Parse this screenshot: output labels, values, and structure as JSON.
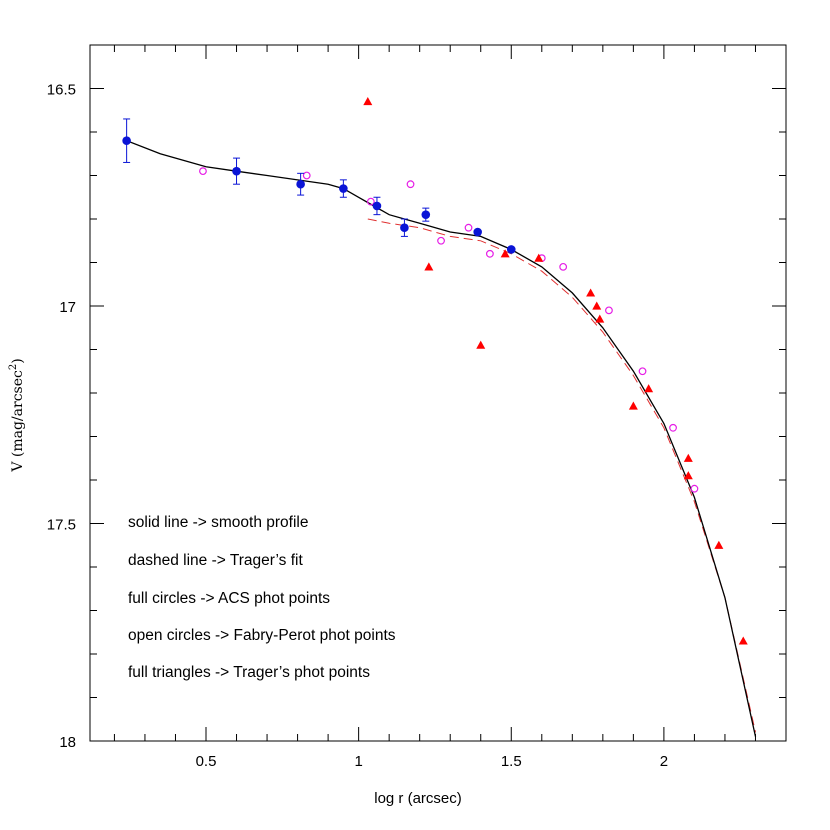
{
  "chart_data": {
    "type": "scatter",
    "xlabel": "log r (arcsec)",
    "ylabel_main": "V  (mag/arcsec",
    "ylabel_sup": "2",
    "ylabel_close": ")",
    "xlim": [
      0.12,
      2.4
    ],
    "ylim": [
      18,
      16.4
    ],
    "y_inverted": true,
    "x_major_ticks": [
      0.5,
      1,
      1.5,
      2
    ],
    "x_tick_labels": [
      "0.5",
      "1",
      "1.5",
      "2"
    ],
    "x_minor_step": 0.1,
    "y_major_ticks": [
      16.5,
      17,
      17.5,
      18
    ],
    "y_tick_labels": [
      "16.5",
      "17",
      "17.5",
      "18"
    ],
    "y_minor_step": 0.1,
    "annotations": [
      "solid line -> smooth profile",
      "dashed line -> Trager’s fit",
      "full circles -> ACS phot points",
      "open circles -> Fabry-Perot phot points",
      "full triangles -> Trager’s phot points"
    ],
    "colors": {
      "acs": "#0a14d6",
      "fabry_perot": "#e61ee6",
      "trager": "#ff0000",
      "smooth": "#000000",
      "trager_fit": "#e03030"
    },
    "series": [
      {
        "key": "smooth_profile",
        "style": "solid-line",
        "x": [
          0.24,
          0.35,
          0.5,
          0.6,
          0.7,
          0.8,
          0.9,
          0.95,
          1.0,
          1.05,
          1.1,
          1.15,
          1.2,
          1.3,
          1.4,
          1.5,
          1.6,
          1.7,
          1.8,
          1.9,
          2.0,
          2.1,
          2.2,
          2.3
        ],
        "y": [
          16.62,
          16.65,
          16.68,
          16.69,
          16.7,
          16.71,
          16.72,
          16.73,
          16.75,
          16.77,
          16.79,
          16.8,
          16.81,
          16.83,
          16.84,
          16.87,
          16.91,
          16.97,
          17.05,
          17.15,
          17.27,
          17.44,
          17.67,
          17.99
        ]
      },
      {
        "key": "trager_fit",
        "style": "dashed-line",
        "x": [
          1.03,
          1.1,
          1.2,
          1.3,
          1.4,
          1.5,
          1.6,
          1.7,
          1.8,
          1.9,
          2.0,
          2.1,
          2.2,
          2.3
        ],
        "y": [
          16.8,
          16.81,
          16.82,
          16.84,
          16.85,
          16.88,
          16.92,
          16.98,
          17.06,
          17.16,
          17.28,
          17.45,
          17.67,
          17.98
        ]
      },
      {
        "key": "acs",
        "style": "filled-circle",
        "x": [
          0.24,
          0.6,
          0.81,
          0.95,
          1.06,
          1.15,
          1.22,
          1.39,
          1.5
        ],
        "y": [
          16.62,
          16.69,
          16.72,
          16.73,
          16.77,
          16.82,
          16.79,
          16.83,
          16.87
        ],
        "err": [
          0.05,
          0.03,
          0.025,
          0.02,
          0.02,
          0.02,
          0.015,
          0.0,
          0.0
        ]
      },
      {
        "key": "fabry_perot",
        "style": "open-circle",
        "x": [
          0.49,
          0.83,
          1.04,
          1.17,
          1.27,
          1.36,
          1.43,
          1.6,
          1.67,
          1.82,
          1.93,
          2.03,
          2.1
        ],
        "y": [
          16.69,
          16.7,
          16.76,
          16.72,
          16.85,
          16.82,
          16.88,
          16.89,
          16.91,
          17.01,
          17.15,
          17.28,
          17.42
        ]
      },
      {
        "key": "trager",
        "style": "filled-triangle",
        "x": [
          1.03,
          1.23,
          1.4,
          1.48,
          1.59,
          1.76,
          1.78,
          1.79,
          1.9,
          1.95,
          2.08,
          2.08,
          2.18,
          2.26
        ],
        "y": [
          16.53,
          16.91,
          17.09,
          16.88,
          16.89,
          16.97,
          17.0,
          17.03,
          17.23,
          17.19,
          17.35,
          17.39,
          17.55,
          17.77
        ]
      }
    ]
  }
}
